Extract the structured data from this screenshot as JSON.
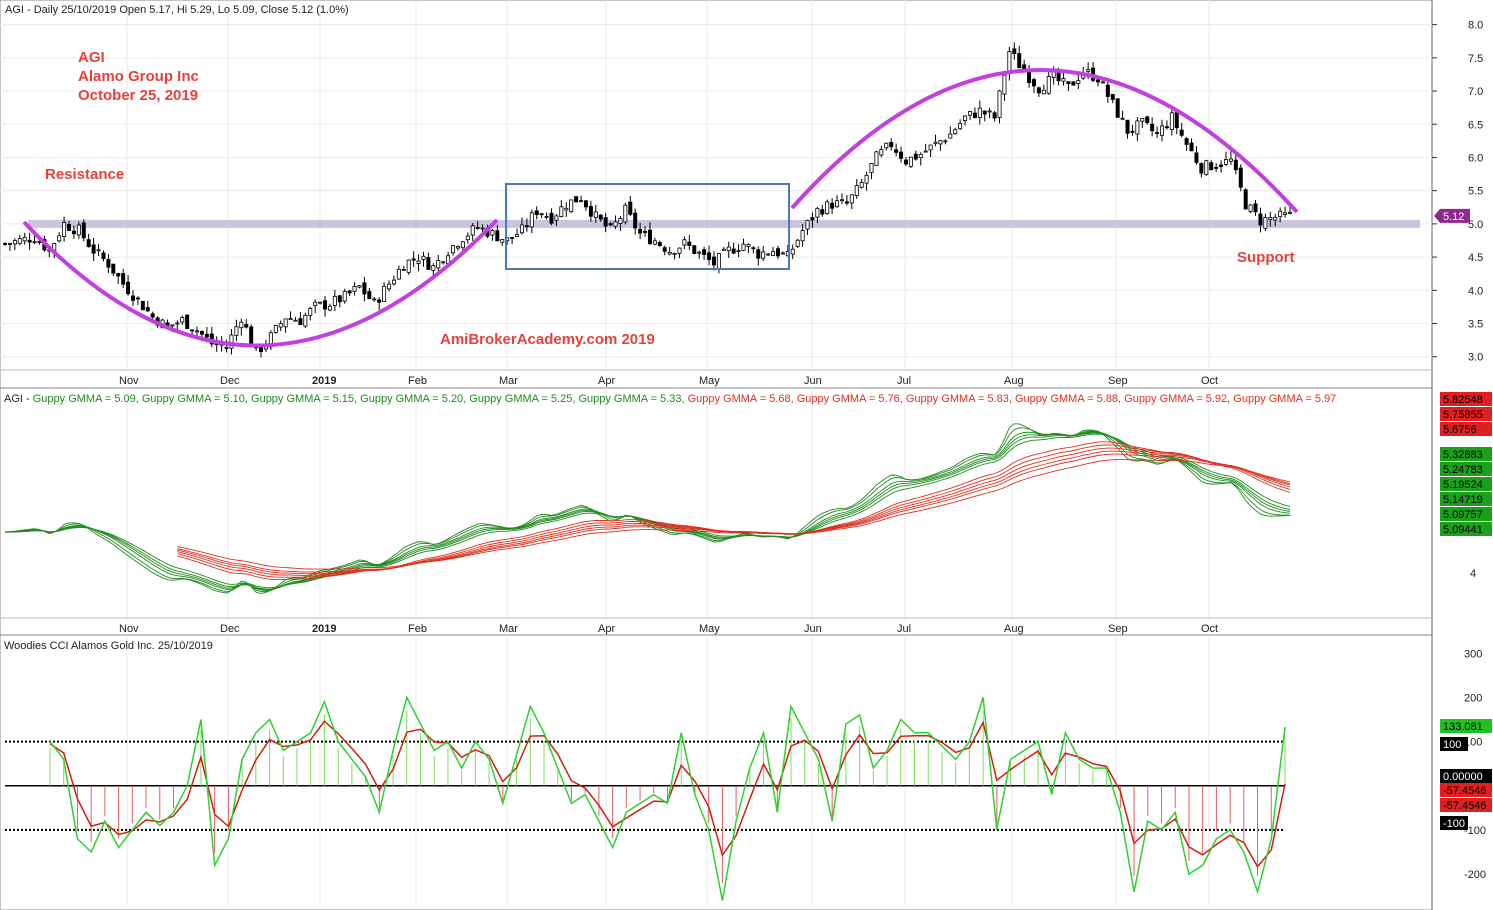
{
  "header": {
    "price": "AGI - Daily 25/10/2019 Open 5.17, Hi 5.29, Lo 5.09, Close 5.12 (1.0%)",
    "gmma_prefix": "AGI - ",
    "gmma_items": [
      {
        "text": "Guppy GMMA = 5.09,",
        "color": "#1e8c1e"
      },
      {
        "text": "Guppy GMMA = 5.10,",
        "color": "#1e8c1e"
      },
      {
        "text": "Guppy GMMA = 5.15,",
        "color": "#1e8c1e"
      },
      {
        "text": "Guppy GMMA = 5.20,",
        "color": "#1e8c1e"
      },
      {
        "text": "Guppy GMMA = 5.25,",
        "color": "#1e8c1e"
      },
      {
        "text": "Guppy GMMA = 5.33,",
        "color": "#1e8c1e"
      },
      {
        "text": "Guppy GMMA = 5.68,",
        "color": "#e03020"
      },
      {
        "text": "Guppy GMMA = 5.76,",
        "color": "#e03020"
      },
      {
        "text": "Guppy GMMA = 5.83,",
        "color": "#e03020"
      },
      {
        "text": "Guppy GMMA = 5.88,",
        "color": "#e03020"
      },
      {
        "text": "Guppy GMMA = 5.92,",
        "color": "#e03020"
      },
      {
        "text": "Guppy GMMA = 5.97",
        "color": "#e03020"
      }
    ],
    "cci": "Woodies CCI  Alamos Gold Inc. 25/10/2019"
  },
  "annotations": {
    "ticker": "AGI",
    "company": "Alamo Group Inc",
    "date": "October 25, 2019",
    "resistance": "Resistance",
    "support": "Support",
    "watermark": "AmiBrokerAcademy.com   2019"
  },
  "months": [
    "Nov",
    "Dec",
    "2019",
    "Feb",
    "Mar",
    "Apr",
    "May",
    "Jun",
    "Jul",
    "Aug",
    "Sep",
    "Oct"
  ],
  "price_axis": [
    "8.0",
    "7.5",
    "7.0",
    "6.5",
    "6.0",
    "5.5",
    "5.0",
    "4.5",
    "4.0",
    "3.5",
    "3.0"
  ],
  "price_tag": "5.12",
  "gmma_axis": [
    "4"
  ],
  "gmma_tags": [
    {
      "text": "5.82548",
      "color": "#e02020"
    },
    {
      "text": "5.75855",
      "color": "#e02020"
    },
    {
      "text": "5.6756",
      "color": "#e02020"
    },
    {
      "text": "5.32883",
      "color": "#1aa01a"
    },
    {
      "text": "5.24783",
      "color": "#1aa01a"
    },
    {
      "text": "5.19524",
      "color": "#1aa01a"
    },
    {
      "text": "5.14719",
      "color": "#1aa01a"
    },
    {
      "text": "5.09757",
      "color": "#1aa01a"
    },
    {
      "text": "5.09441",
      "color": "#1aa01a"
    }
  ],
  "cci_axis": [
    "300",
    "200",
    "100",
    "-100",
    "-200"
  ],
  "cci_tags": [
    {
      "text": "133.081",
      "color": "#22c022",
      "fg": "#000000"
    },
    {
      "text": "100",
      "color": "#000000",
      "fg": "#ffffff"
    },
    {
      "text": "0.00000",
      "color": "#000000",
      "fg": "#ffffff"
    },
    {
      "text": "-57.4546",
      "color": "#e02020",
      "fg": "#000000"
    },
    {
      "text": "-57.4546",
      "color": "#e02020",
      "fg": "#000000"
    },
    {
      "text": "-100",
      "color": "#000000",
      "fg": "#ffffff"
    }
  ],
  "colors": {
    "ema_short": "#1e8c1e",
    "ema_long": "#e03020",
    "arc": "#c040e0",
    "box": "#4a78c0",
    "band": "#c8bcd8"
  },
  "chart_data": [
    {
      "type": "candlestick",
      "title": "AGI - Daily 25/10/2019",
      "ylim": [
        2.8,
        8.1
      ],
      "x_labels": [
        "Nov",
        "Dec",
        "2019",
        "Feb",
        "Mar",
        "Apr",
        "May",
        "Jun",
        "Jul",
        "Aug",
        "Sep",
        "Oct"
      ],
      "last_close": 5.12,
      "ohlc_last": {
        "open": 5.17,
        "high": 5.29,
        "low": 5.09,
        "close": 5.12
      },
      "resistance_support_level": 5.0,
      "path": [
        4.7,
        4.75,
        4.8,
        4.6,
        5.0,
        4.9,
        4.6,
        4.4,
        4.1,
        3.85,
        3.6,
        3.45,
        3.55,
        3.4,
        3.2,
        3.15,
        3.6,
        3.05,
        3.3,
        3.6,
        3.55,
        3.75,
        3.8,
        3.9,
        4.05,
        3.8,
        4.1,
        4.4,
        4.5,
        4.35,
        4.6,
        4.8,
        4.95,
        4.85,
        4.75,
        4.9,
        5.2,
        5.1,
        5.3,
        5.4,
        5.1,
        4.9,
        5.2,
        4.85,
        4.75,
        4.6,
        4.7,
        4.55,
        4.4,
        4.6,
        4.7,
        4.55,
        4.6,
        4.5,
        4.9,
        5.2,
        5.3,
        5.3,
        5.6,
        6.0,
        6.2,
        5.95,
        6.05,
        6.2,
        6.35,
        6.6,
        6.7,
        6.6,
        7.6,
        7.3,
        7.05,
        7.2,
        7.05,
        7.3,
        7.2,
        6.8,
        6.4,
        6.5,
        6.35,
        6.6,
        6.2,
        5.85,
        5.9,
        5.95,
        5.3,
        5.05,
        5.1,
        5.12
      ]
    },
    {
      "type": "line",
      "title": "Guppy GMMA",
      "series": [
        {
          "name": "Guppy GMMA = 5.09",
          "values": [
            5.09
          ]
        },
        {
          "name": "Guppy GMMA = 5.10",
          "values": [
            5.1
          ]
        },
        {
          "name": "Guppy GMMA = 5.15",
          "values": [
            5.15
          ]
        },
        {
          "name": "Guppy GMMA = 5.20",
          "values": [
            5.2
          ]
        },
        {
          "name": "Guppy GMMA = 5.25",
          "values": [
            5.25
          ]
        },
        {
          "name": "Guppy GMMA = 5.33",
          "values": [
            5.33
          ]
        },
        {
          "name": "Guppy GMMA = 5.68",
          "values": [
            5.68
          ]
        },
        {
          "name": "Guppy GMMA = 5.76",
          "values": [
            5.76
          ]
        },
        {
          "name": "Guppy GMMA = 5.83",
          "values": [
            5.83
          ]
        },
        {
          "name": "Guppy GMMA = 5.88",
          "values": [
            5.88
          ]
        },
        {
          "name": "Guppy GMMA = 5.92",
          "values": [
            5.92
          ]
        },
        {
          "name": "Guppy GMMA = 5.97",
          "values": [
            5.97
          ]
        }
      ]
    },
    {
      "type": "bar",
      "title": "Woodies CCI  Alamos Gold Inc. 25/10/2019",
      "ylim": [
        -270,
        330
      ],
      "reference_lines": [
        100,
        0,
        -100
      ],
      "last_cci": 133.081,
      "last_turbo": -57.4546,
      "cci_values": [
        100,
        60,
        -120,
        -150,
        -80,
        -140,
        -100,
        -60,
        -90,
        -60,
        0,
        150,
        -180,
        -120,
        60,
        120,
        150,
        80,
        100,
        120,
        190,
        100,
        60,
        20,
        -60,
        80,
        200,
        140,
        80,
        100,
        40,
        100,
        60,
        -40,
        70,
        180,
        120,
        40,
        -40,
        -20,
        -80,
        -140,
        -60,
        -40,
        -20,
        -40,
        120,
        -20,
        -100,
        -260,
        -80,
        40,
        120,
        -60,
        180,
        120,
        60,
        -80,
        140,
        160,
        40,
        80,
        150,
        120,
        120,
        90,
        60,
        100,
        200,
        -100,
        60,
        80,
        100,
        -20,
        120,
        60,
        40,
        40,
        -60,
        -240,
        -80,
        -100,
        -60,
        -200,
        -180,
        -120,
        -100,
        -150,
        -240,
        -120,
        133
      ]
    }
  ]
}
